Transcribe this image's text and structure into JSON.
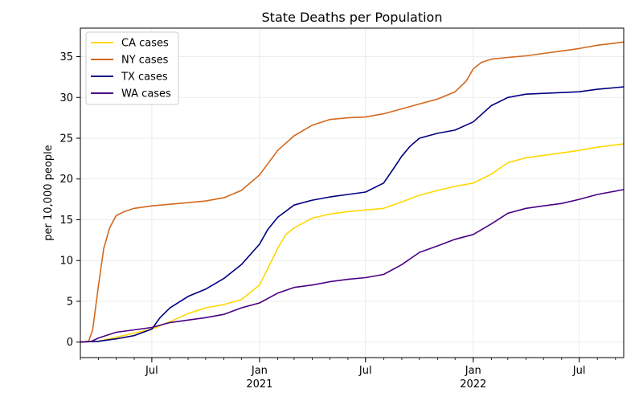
{
  "chart_data": {
    "type": "line",
    "title": "State Deaths per Population",
    "xlabel": "",
    "ylabel": "per 10,000 people",
    "xlim": [
      "2020-03-01",
      "2022-09-15"
    ],
    "ylim": [
      -1.9,
      38.5
    ],
    "grid": true,
    "legend_position": "top-left",
    "x_ticks": [
      {
        "date": "2020-07-01",
        "label": "Jul",
        "sublabel": ""
      },
      {
        "date": "2021-01-01",
        "label": "Jan",
        "sublabel": "2021"
      },
      {
        "date": "2021-07-01",
        "label": "Jul",
        "sublabel": ""
      },
      {
        "date": "2022-01-01",
        "label": "Jan",
        "sublabel": "2022"
      },
      {
        "date": "2022-07-01",
        "label": "Jul",
        "sublabel": ""
      }
    ],
    "y_ticks": [
      0,
      5,
      10,
      15,
      20,
      25,
      30,
      35
    ],
    "series": [
      {
        "name": "CA cases",
        "color": "#FFD700",
        "points": [
          [
            "2020-03-01",
            0
          ],
          [
            "2020-04-01",
            0.1
          ],
          [
            "2020-05-01",
            0.6
          ],
          [
            "2020-06-01",
            1.1
          ],
          [
            "2020-07-01",
            1.6
          ],
          [
            "2020-08-01",
            2.5
          ],
          [
            "2020-09-01",
            3.5
          ],
          [
            "2020-10-01",
            4.2
          ],
          [
            "2020-11-01",
            4.6
          ],
          [
            "2020-12-01",
            5.2
          ],
          [
            "2021-01-01",
            7.0
          ],
          [
            "2021-01-15",
            9.0
          ],
          [
            "2021-02-01",
            11.5
          ],
          [
            "2021-02-15",
            13.2
          ],
          [
            "2021-03-01",
            14.0
          ],
          [
            "2021-04-01",
            15.2
          ],
          [
            "2021-05-01",
            15.7
          ],
          [
            "2021-06-01",
            16.0
          ],
          [
            "2021-07-01",
            16.2
          ],
          [
            "2021-08-01",
            16.4
          ],
          [
            "2021-09-01",
            17.2
          ],
          [
            "2021-10-01",
            18.0
          ],
          [
            "2021-11-01",
            18.6
          ],
          [
            "2021-12-01",
            19.1
          ],
          [
            "2022-01-01",
            19.5
          ],
          [
            "2022-02-01",
            20.6
          ],
          [
            "2022-03-01",
            22.0
          ],
          [
            "2022-04-01",
            22.6
          ],
          [
            "2022-05-01",
            22.9
          ],
          [
            "2022-06-01",
            23.2
          ],
          [
            "2022-07-01",
            23.5
          ],
          [
            "2022-08-01",
            23.9
          ],
          [
            "2022-09-15",
            24.3
          ]
        ]
      },
      {
        "name": "NY cases",
        "color": "#D2691E",
        "points": [
          [
            "2020-03-01",
            0
          ],
          [
            "2020-03-15",
            0.1
          ],
          [
            "2020-03-22",
            1.5
          ],
          [
            "2020-04-01",
            7.0
          ],
          [
            "2020-04-10",
            11.5
          ],
          [
            "2020-04-20",
            14.0
          ],
          [
            "2020-05-01",
            15.5
          ],
          [
            "2020-05-15",
            16.0
          ],
          [
            "2020-06-01",
            16.4
          ],
          [
            "2020-07-01",
            16.7
          ],
          [
            "2020-08-01",
            16.9
          ],
          [
            "2020-09-01",
            17.1
          ],
          [
            "2020-10-01",
            17.3
          ],
          [
            "2020-11-01",
            17.7
          ],
          [
            "2020-12-01",
            18.6
          ],
          [
            "2021-01-01",
            20.5
          ],
          [
            "2021-02-01",
            23.5
          ],
          [
            "2021-03-01",
            25.3
          ],
          [
            "2021-04-01",
            26.6
          ],
          [
            "2021-05-01",
            27.3
          ],
          [
            "2021-06-01",
            27.5
          ],
          [
            "2021-07-01",
            27.6
          ],
          [
            "2021-08-01",
            28.0
          ],
          [
            "2021-09-01",
            28.6
          ],
          [
            "2021-10-01",
            29.2
          ],
          [
            "2021-11-01",
            29.8
          ],
          [
            "2021-12-01",
            30.7
          ],
          [
            "2021-12-20",
            32.0
          ],
          [
            "2022-01-01",
            33.5
          ],
          [
            "2022-01-15",
            34.3
          ],
          [
            "2022-02-01",
            34.7
          ],
          [
            "2022-03-01",
            34.9
          ],
          [
            "2022-04-01",
            35.1
          ],
          [
            "2022-05-01",
            35.4
          ],
          [
            "2022-06-01",
            35.7
          ],
          [
            "2022-07-01",
            36.0
          ],
          [
            "2022-08-01",
            36.4
          ],
          [
            "2022-09-15",
            36.8
          ]
        ]
      },
      {
        "name": "TX cases",
        "color": "#000080",
        "points": [
          [
            "2020-03-01",
            0
          ],
          [
            "2020-04-01",
            0.1
          ],
          [
            "2020-05-01",
            0.4
          ],
          [
            "2020-06-01",
            0.8
          ],
          [
            "2020-07-01",
            1.6
          ],
          [
            "2020-07-15",
            3.0
          ],
          [
            "2020-08-01",
            4.2
          ],
          [
            "2020-09-01",
            5.6
          ],
          [
            "2020-10-01",
            6.5
          ],
          [
            "2020-11-01",
            7.8
          ],
          [
            "2020-12-01",
            9.5
          ],
          [
            "2021-01-01",
            12.0
          ],
          [
            "2021-01-15",
            13.8
          ],
          [
            "2021-02-01",
            15.3
          ],
          [
            "2021-03-01",
            16.8
          ],
          [
            "2021-04-01",
            17.4
          ],
          [
            "2021-05-01",
            17.8
          ],
          [
            "2021-06-01",
            18.1
          ],
          [
            "2021-07-01",
            18.4
          ],
          [
            "2021-08-01",
            19.5
          ],
          [
            "2021-08-20",
            21.5
          ],
          [
            "2021-09-01",
            22.8
          ],
          [
            "2021-09-15",
            24.0
          ],
          [
            "2021-10-01",
            25.0
          ],
          [
            "2021-11-01",
            25.6
          ],
          [
            "2021-12-01",
            26.0
          ],
          [
            "2022-01-01",
            27.0
          ],
          [
            "2022-02-01",
            29.0
          ],
          [
            "2022-03-01",
            30.0
          ],
          [
            "2022-04-01",
            30.4
          ],
          [
            "2022-05-01",
            30.5
          ],
          [
            "2022-06-01",
            30.6
          ],
          [
            "2022-07-01",
            30.7
          ],
          [
            "2022-08-01",
            31.0
          ],
          [
            "2022-09-15",
            31.3
          ]
        ]
      },
      {
        "name": "WA cases",
        "color": "#4B0082",
        "points": [
          [
            "2020-03-01",
            0
          ],
          [
            "2020-03-20",
            0.1
          ],
          [
            "2020-04-01",
            0.5
          ],
          [
            "2020-05-01",
            1.2
          ],
          [
            "2020-06-01",
            1.5
          ],
          [
            "2020-07-01",
            1.8
          ],
          [
            "2020-08-01",
            2.4
          ],
          [
            "2020-09-01",
            2.7
          ],
          [
            "2020-10-01",
            3.0
          ],
          [
            "2020-11-01",
            3.4
          ],
          [
            "2020-12-01",
            4.2
          ],
          [
            "2021-01-01",
            4.8
          ],
          [
            "2021-02-01",
            6.0
          ],
          [
            "2021-03-01",
            6.7
          ],
          [
            "2021-04-01",
            7.0
          ],
          [
            "2021-05-01",
            7.4
          ],
          [
            "2021-06-01",
            7.7
          ],
          [
            "2021-07-01",
            7.9
          ],
          [
            "2021-08-01",
            8.3
          ],
          [
            "2021-09-01",
            9.5
          ],
          [
            "2021-10-01",
            11.0
          ],
          [
            "2021-11-01",
            11.8
          ],
          [
            "2021-12-01",
            12.6
          ],
          [
            "2022-01-01",
            13.2
          ],
          [
            "2022-02-01",
            14.5
          ],
          [
            "2022-03-01",
            15.8
          ],
          [
            "2022-04-01",
            16.4
          ],
          [
            "2022-05-01",
            16.7
          ],
          [
            "2022-06-01",
            17.0
          ],
          [
            "2022-07-01",
            17.5
          ],
          [
            "2022-08-01",
            18.1
          ],
          [
            "2022-09-15",
            18.7
          ]
        ]
      }
    ]
  }
}
